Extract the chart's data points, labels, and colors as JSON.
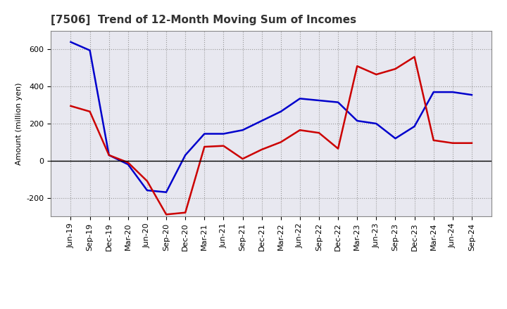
{
  "title": "[7506]  Trend of 12-Month Moving Sum of Incomes",
  "ylabel": "Amount (million yen)",
  "background_color": "#ffffff",
  "plot_bg_color": "#e8e8f0",
  "grid_color": "#999999",
  "xlabels": [
    "Jun-19",
    "Sep-19",
    "Dec-19",
    "Mar-20",
    "Jun-20",
    "Sep-20",
    "Dec-20",
    "Mar-21",
    "Jun-21",
    "Sep-21",
    "Dec-21",
    "Mar-22",
    "Jun-22",
    "Sep-22",
    "Dec-22",
    "Mar-23",
    "Jun-23",
    "Sep-23",
    "Dec-23",
    "Mar-24",
    "Jun-24",
    "Sep-24"
  ],
  "ordinary_income": [
    640,
    595,
    30,
    -20,
    -160,
    -170,
    30,
    145,
    145,
    165,
    215,
    265,
    335,
    325,
    315,
    215,
    200,
    120,
    185,
    370,
    370,
    355
  ],
  "net_income": [
    295,
    265,
    30,
    -10,
    -110,
    -290,
    -280,
    75,
    80,
    10,
    60,
    100,
    165,
    150,
    65,
    510,
    465,
    495,
    560,
    110,
    95,
    95
  ],
  "ordinary_color": "#0000cc",
  "net_color": "#cc0000",
  "ylim": [
    -300,
    700
  ],
  "yticks": [
    -200,
    0,
    200,
    400,
    600
  ],
  "title_fontsize": 11,
  "axis_fontsize": 8,
  "ylabel_fontsize": 8
}
